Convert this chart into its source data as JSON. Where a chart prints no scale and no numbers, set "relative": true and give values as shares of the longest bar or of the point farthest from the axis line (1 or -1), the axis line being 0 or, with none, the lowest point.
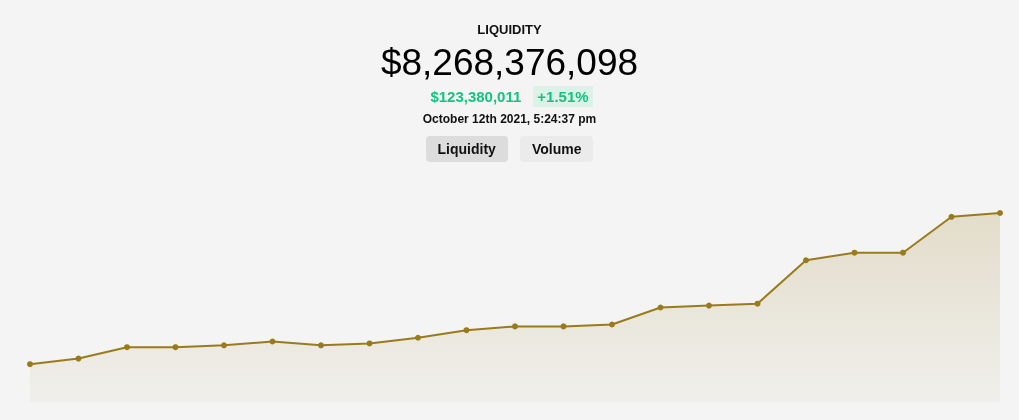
{
  "chart_data": {
    "type": "area",
    "title": "LIQUIDITY",
    "subtitle": "$8,268,376,098",
    "annotations": [
      "$123,380,011",
      "+1.51%",
      "October 12th 2021, 5:24:37 pm",
      "Liquidity",
      "Volume"
    ],
    "relative": true,
    "color": "#9a7b1c",
    "marker": "circle",
    "grid": false,
    "categories": [
      null,
      null,
      null,
      null,
      null,
      null,
      null,
      null,
      null,
      null,
      null,
      null,
      null,
      null,
      null,
      null,
      null,
      null,
      null,
      null,
      null
    ],
    "values": [
      0.2,
      0.23,
      0.29,
      0.29,
      0.3,
      0.32,
      0.3,
      0.31,
      0.34,
      0.38,
      0.4,
      0.4,
      0.41,
      0.5,
      0.51,
      0.52,
      0.75,
      0.79,
      0.79,
      0.98,
      1
    ]
  }
}
